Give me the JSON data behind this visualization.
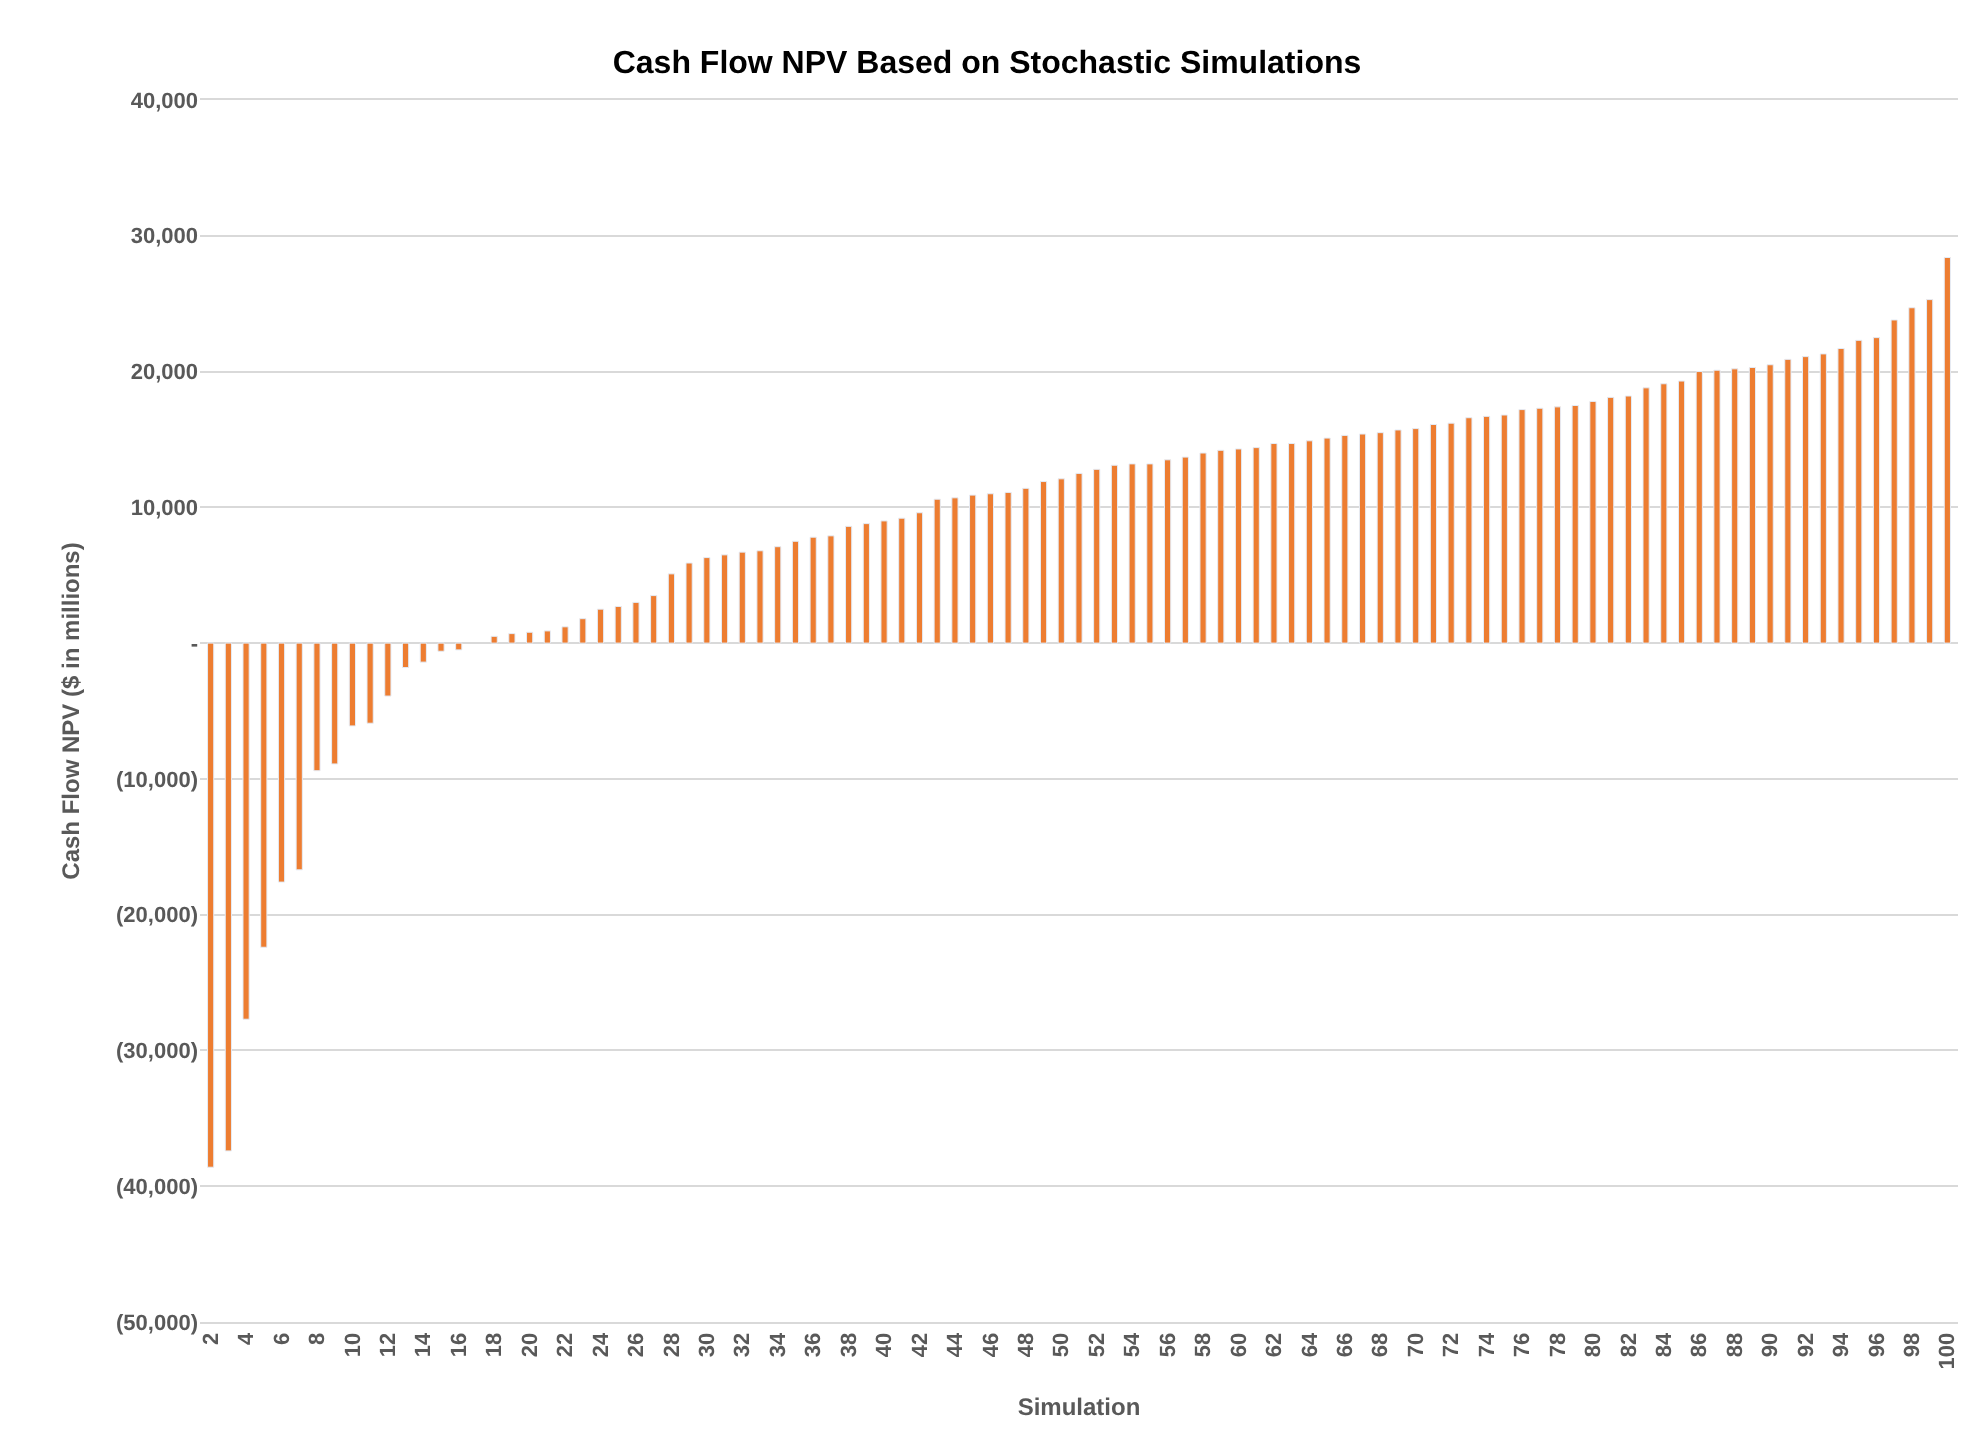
{
  "chart_data": {
    "type": "bar",
    "title": "Cash Flow NPV Based on Stochastic Simulations",
    "xlabel": "Simulation",
    "ylabel": "Cash Flow NPV ($ in millions)",
    "categories": [
      "2",
      null,
      "4",
      null,
      "6",
      null,
      "8",
      null,
      "10",
      null,
      "12",
      null,
      "14",
      null,
      "16",
      null,
      "18",
      null,
      "20",
      null,
      "22",
      null,
      "24",
      null,
      "26",
      null,
      "28",
      null,
      "30",
      null,
      "32",
      null,
      "34",
      null,
      "36",
      null,
      "38",
      null,
      "40",
      null,
      "42",
      null,
      "44",
      null,
      "46",
      null,
      "48",
      null,
      "50",
      null,
      "52",
      null,
      "54",
      null,
      "56",
      null,
      "58",
      null,
      "60",
      null,
      "62",
      null,
      "64",
      null,
      "66",
      null,
      "68",
      null,
      "70",
      null,
      "72",
      null,
      "74",
      null,
      "76",
      null,
      "78",
      null,
      "80",
      null,
      "82",
      null,
      "84",
      null,
      "86",
      null,
      "88",
      null,
      "90",
      null,
      "92",
      null,
      "94",
      null,
      "96",
      null,
      "98",
      null,
      "100"
    ],
    "values": [
      -38600,
      -37400,
      -27700,
      -22400,
      -17600,
      -16700,
      -9400,
      -8900,
      -6100,
      -5900,
      -3900,
      -1800,
      -1400,
      -600,
      -500,
      null,
      500,
      700,
      800,
      900,
      1200,
      1800,
      2500,
      2700,
      3000,
      3500,
      5100,
      5900,
      6300,
      6500,
      6700,
      6800,
      7100,
      7500,
      7800,
      7900,
      8600,
      8800,
      9000,
      9200,
      9600,
      10600,
      10700,
      10900,
      11000,
      11100,
      11400,
      11900,
      12100,
      12500,
      12800,
      13100,
      13200,
      13200,
      13500,
      13700,
      14000,
      14200,
      14300,
      14400,
      14700,
      14700,
      14900,
      15100,
      15300,
      15400,
      15500,
      15700,
      15800,
      16100,
      16200,
      16600,
      16700,
      16800,
      17200,
      17300,
      17400,
      17500,
      17800,
      18100,
      18200,
      18800,
      19100,
      19300,
      20000,
      20100,
      20200,
      20300,
      20500,
      20900,
      21100,
      21300,
      21700,
      22300,
      22500,
      23800,
      24700,
      25300,
      28400
    ],
    "color": "#ed7d31",
    "ylim": [
      -50000,
      40000
    ],
    "yticks": [
      {
        "value": -50000,
        "label": "(50,000)"
      },
      {
        "value": -40000,
        "label": "(40,000)"
      },
      {
        "value": -30000,
        "label": "(30,000)"
      },
      {
        "value": -20000,
        "label": "(20,000)"
      },
      {
        "value": -10000,
        "label": "(10,000)"
      },
      {
        "value": 0,
        "label": "-"
      },
      "10,000",
      "20,000",
      "30,000",
      "40,000"
    ],
    "grid": "y"
  }
}
